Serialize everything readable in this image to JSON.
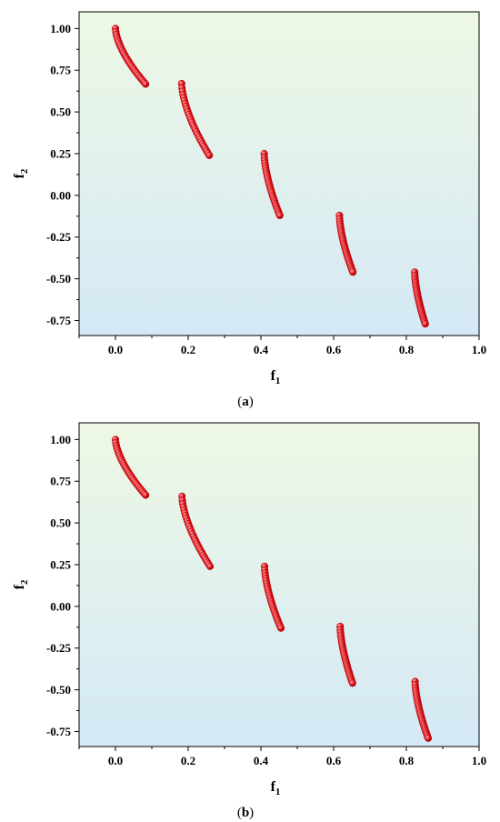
{
  "charts": [
    {
      "caption_letter": "a",
      "chart_data": {
        "type": "scatter",
        "xlabel": "f1",
        "ylabel": "f2",
        "xlim": [
          -0.1,
          1.0
        ],
        "ylim": [
          -0.84,
          1.1
        ],
        "xticks": [
          "0.0",
          "0.2",
          "0.4",
          "0.6",
          "0.8",
          "1.0"
        ],
        "yticks": [
          "1.00",
          "0.75",
          "0.50",
          "0.25",
          "0.00",
          "-0.25",
          "-0.50",
          "-0.75"
        ],
        "grid": false,
        "legend": "none",
        "marker_color": "#e8141c",
        "segments": [
          {
            "f1_range": [
              0.0,
              0.083
            ],
            "f2_range": [
              1.0,
              0.667
            ]
          },
          {
            "f1_range": [
              0.182,
              0.258
            ],
            "f2_range": [
              0.67,
              0.24
            ]
          },
          {
            "f1_range": [
              0.409,
              0.452
            ],
            "f2_range": [
              0.25,
              -0.12
            ]
          },
          {
            "f1_range": [
              0.616,
              0.653
            ],
            "f2_range": [
              -0.12,
              -0.46
            ]
          },
          {
            "f1_range": [
              0.823,
              0.852
            ],
            "f2_range": [
              -0.46,
              -0.77
            ]
          }
        ]
      }
    },
    {
      "caption_letter": "b",
      "chart_data": {
        "type": "scatter",
        "xlabel": "f1",
        "ylabel": "f2",
        "xlim": [
          -0.1,
          1.0
        ],
        "ylim": [
          -0.84,
          1.1
        ],
        "xticks": [
          "0.0",
          "0.2",
          "0.4",
          "0.6",
          "0.8",
          "1.0"
        ],
        "yticks": [
          "1.00",
          "0.75",
          "0.50",
          "0.25",
          "0.00",
          "-0.25",
          "-0.50",
          "-0.75"
        ],
        "grid": false,
        "legend": "none",
        "marker_color": "#e8141c",
        "segments": [
          {
            "f1_range": [
              0.0,
              0.083
            ],
            "f2_range": [
              1.0,
              0.667
            ]
          },
          {
            "f1_range": [
              0.183,
              0.26
            ],
            "f2_range": [
              0.66,
              0.24
            ]
          },
          {
            "f1_range": [
              0.41,
              0.455
            ],
            "f2_range": [
              0.24,
              -0.13
            ]
          },
          {
            "f1_range": [
              0.618,
              0.652
            ],
            "f2_range": [
              -0.12,
              -0.46
            ]
          },
          {
            "f1_range": [
              0.824,
              0.86
            ],
            "f2_range": [
              -0.45,
              -0.79
            ]
          }
        ]
      }
    }
  ]
}
